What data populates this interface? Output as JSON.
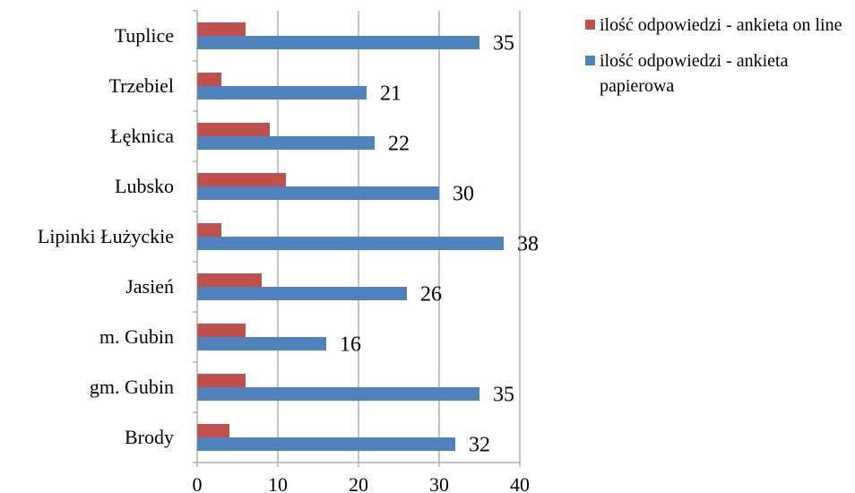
{
  "chart_data": {
    "type": "bar",
    "orientation": "horizontal",
    "categories": [
      "Tuplice",
      "Trzebiel",
      "Łęknica",
      "Lubsko",
      "Lipinki Łużyckie",
      "Jasień",
      "m. Gubin",
      "gm. Gubin",
      "Brody"
    ],
    "series": [
      {
        "name": "ilość odpowiedzi - ankieta on line",
        "color": "#C0504D",
        "values": [
          6,
          3,
          9,
          11,
          3,
          8,
          6,
          6,
          4
        ]
      },
      {
        "name": "ilość odpowiedzi - ankieta papierowa",
        "color": "#4F81BD",
        "values": [
          35,
          21,
          22,
          30,
          38,
          26,
          16,
          35,
          32
        ]
      }
    ],
    "data_labels_series": 1,
    "xlim": [
      0,
      40
    ],
    "x_ticks": [
      0,
      10,
      20,
      30,
      40
    ],
    "grid": true,
    "legend_position": "right",
    "gridline_color": "#888888"
  }
}
